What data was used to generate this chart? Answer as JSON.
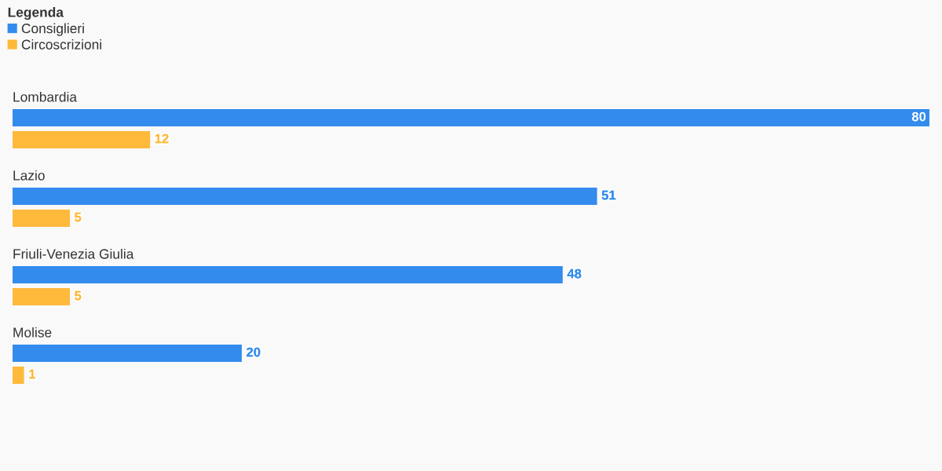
{
  "chart_data": {
    "type": "bar",
    "orientation": "horizontal",
    "categories": [
      "Lombardia",
      "Lazio",
      "Friuli-Venezia Giulia",
      "Molise"
    ],
    "series": [
      {
        "name": "Consiglieri",
        "color": "#338ced",
        "values": [
          80,
          51,
          48,
          20
        ]
      },
      {
        "name": "Circoscrizioni",
        "color": "#ffb93b",
        "values": [
          12,
          5,
          5,
          1
        ]
      }
    ],
    "data_labels": true,
    "legend": "top left",
    "legend_title": "Legenda"
  }
}
